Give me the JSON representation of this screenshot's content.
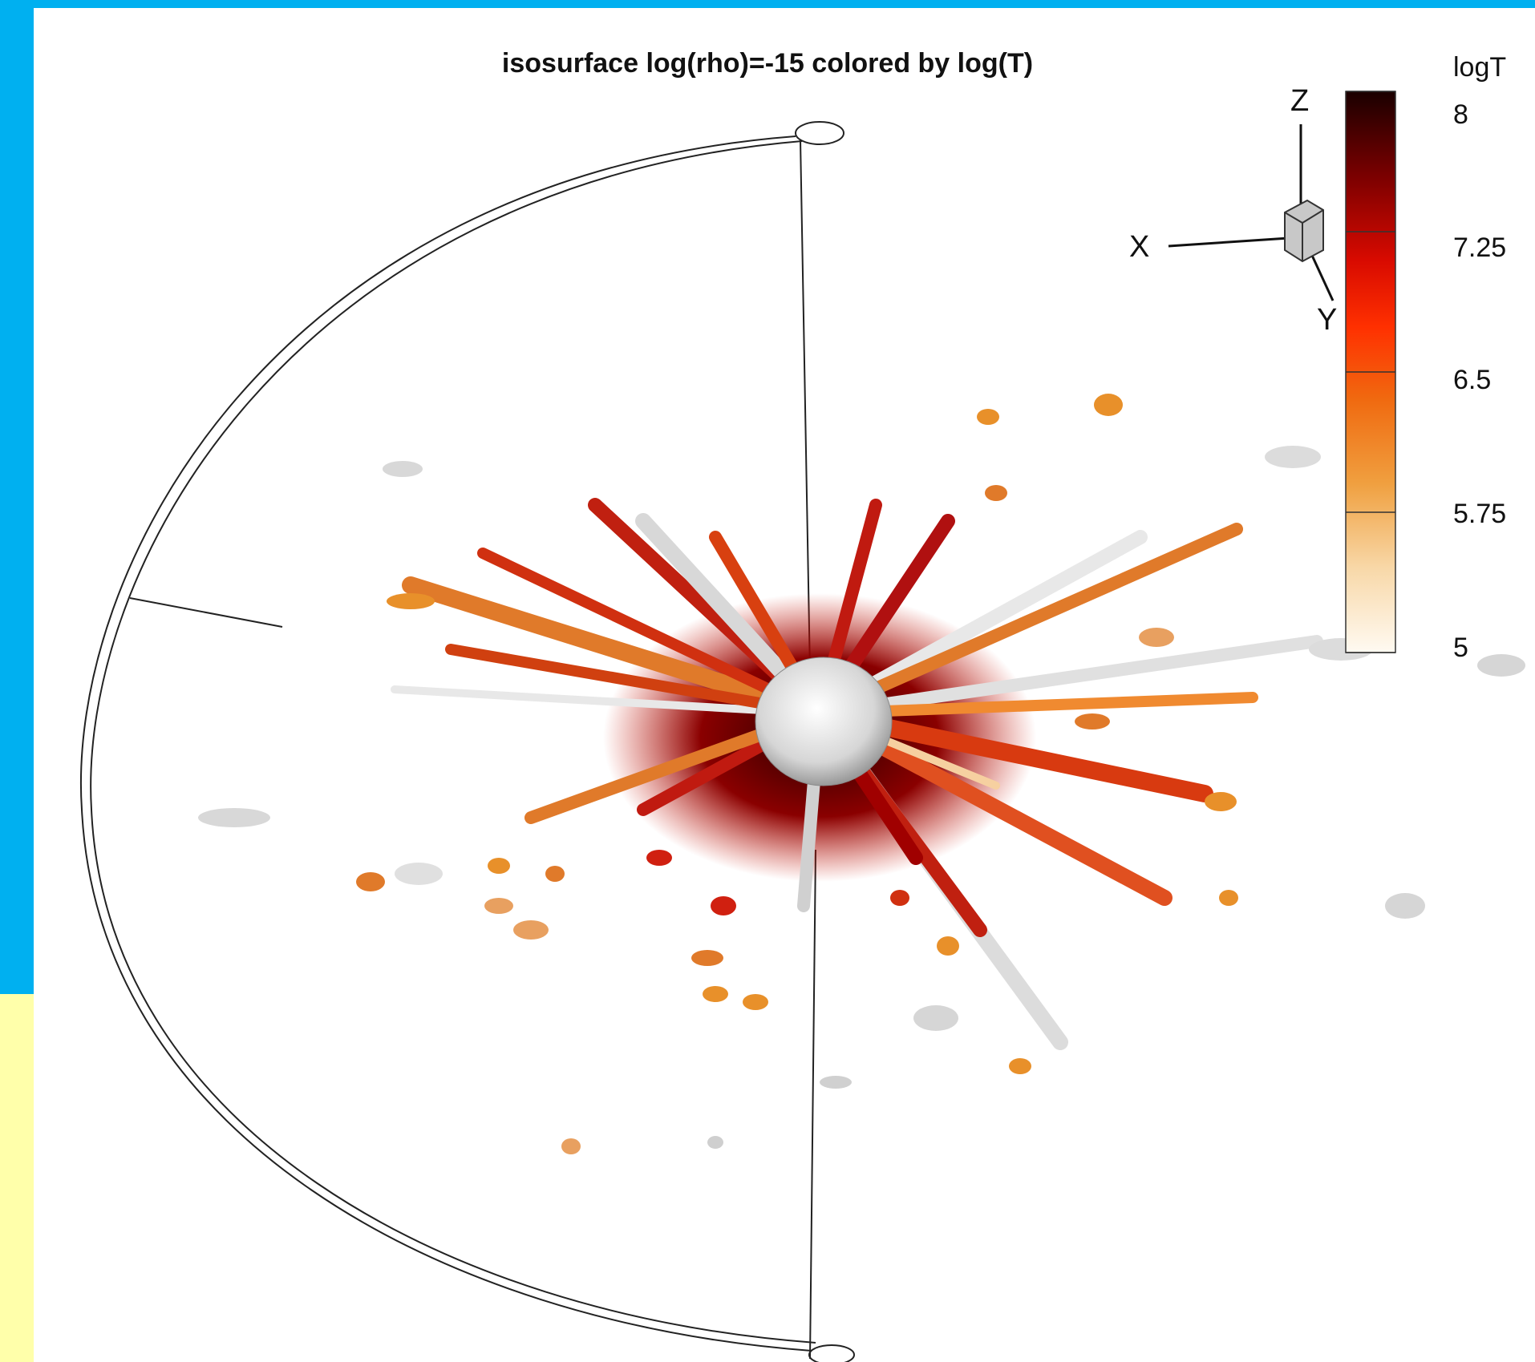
{
  "figure": {
    "title": "isosurface log(rho)=-15 colored by log(T)"
  },
  "colorbar": {
    "title": "logT",
    "ticks": [
      "8",
      "7.25",
      "6.5",
      "5.75",
      "5"
    ],
    "range": [
      5,
      8
    ],
    "colors": {
      "high": "#1a0000",
      "mid_high": "#c00000",
      "mid": "#ff2a00",
      "mid_low": "#f08020",
      "low": "#fff8ee"
    }
  },
  "axes_triad": {
    "x": "X",
    "y": "Y",
    "z": "Z"
  },
  "colors": {
    "frame_blue": "#00b0f0",
    "frame_yellow": "#ffffaa",
    "surface_white": "#e8e8e8",
    "ejecta_orange": "#e0701a",
    "ejecta_red": "#d01a10",
    "ejecta_dark": "#3a0000"
  }
}
